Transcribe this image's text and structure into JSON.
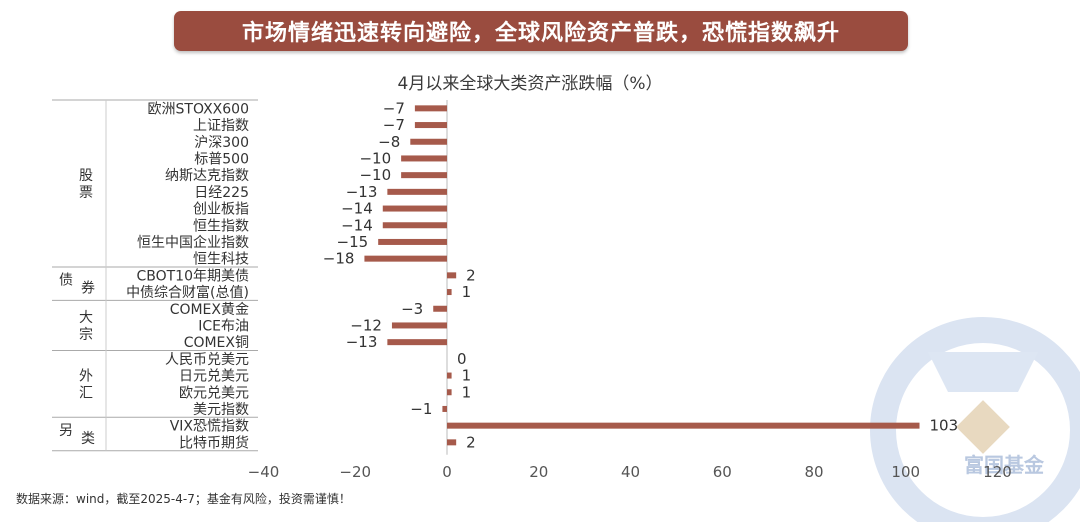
{
  "header": {
    "title": "市场情绪迅速转向避险，全球风险资产普跌，恐慌指数飙升"
  },
  "footnote": "数据来源：wind，截至2025-4-7；基金有风险，投资需谨慎！",
  "watermark": {
    "text": "富国基金",
    "icon": "fullgoal-logo-icon"
  },
  "colors": {
    "bar": "#a65a4b",
    "banner": "#9a4c3f",
    "watermark": "#c9d6ea"
  },
  "chart_data": {
    "type": "bar",
    "orientation": "horizontal",
    "title": "4月以来全球大类资产涨跌幅（%）",
    "xlim": [
      -40,
      120
    ],
    "xticks": [
      -40,
      -20,
      0,
      20,
      40,
      60,
      80,
      100,
      120
    ],
    "grid": false,
    "groups": [
      {
        "label": "股票",
        "count": 10
      },
      {
        "label": "债券",
        "count": 2
      },
      {
        "label": "大宗",
        "count": 3
      },
      {
        "label": "外汇",
        "count": 4
      },
      {
        "label": "另类",
        "count": 2
      }
    ],
    "categories": [
      "欧洲STOXX600",
      "上证指数",
      "沪深300",
      "标普500",
      "纳斯达克指数",
      "日经225",
      "创业板指",
      "恒生指数",
      "恒生中国企业指数",
      "恒生科技",
      "CBOT10年期美债",
      "中债综合财富(总值)",
      "COMEX黄金",
      "ICE布油",
      "COMEX铜",
      "人民币兑美元",
      "日元兑美元",
      "欧元兑美元",
      "美元指数",
      "VIX恐慌指数",
      "比特币期货"
    ],
    "values": [
      -7,
      -7,
      -8,
      -10,
      -10,
      -13,
      -14,
      -14,
      -15,
      -18,
      2,
      1,
      -3,
      -12,
      -13,
      0,
      1,
      1,
      -1,
      103,
      2
    ],
    "value_labels": [
      "−7",
      "−7",
      "−8",
      "−10",
      "−10",
      "−13",
      "−14",
      "−14",
      "−15",
      "−18",
      "2",
      "1",
      "−3",
      "−12",
      "−13",
      "0",
      "1",
      "1",
      "−1",
      "103",
      "2"
    ],
    "tick_labels": [
      "−40",
      "−20",
      "0",
      "20",
      "40",
      "60",
      "80",
      "100",
      "120"
    ]
  }
}
